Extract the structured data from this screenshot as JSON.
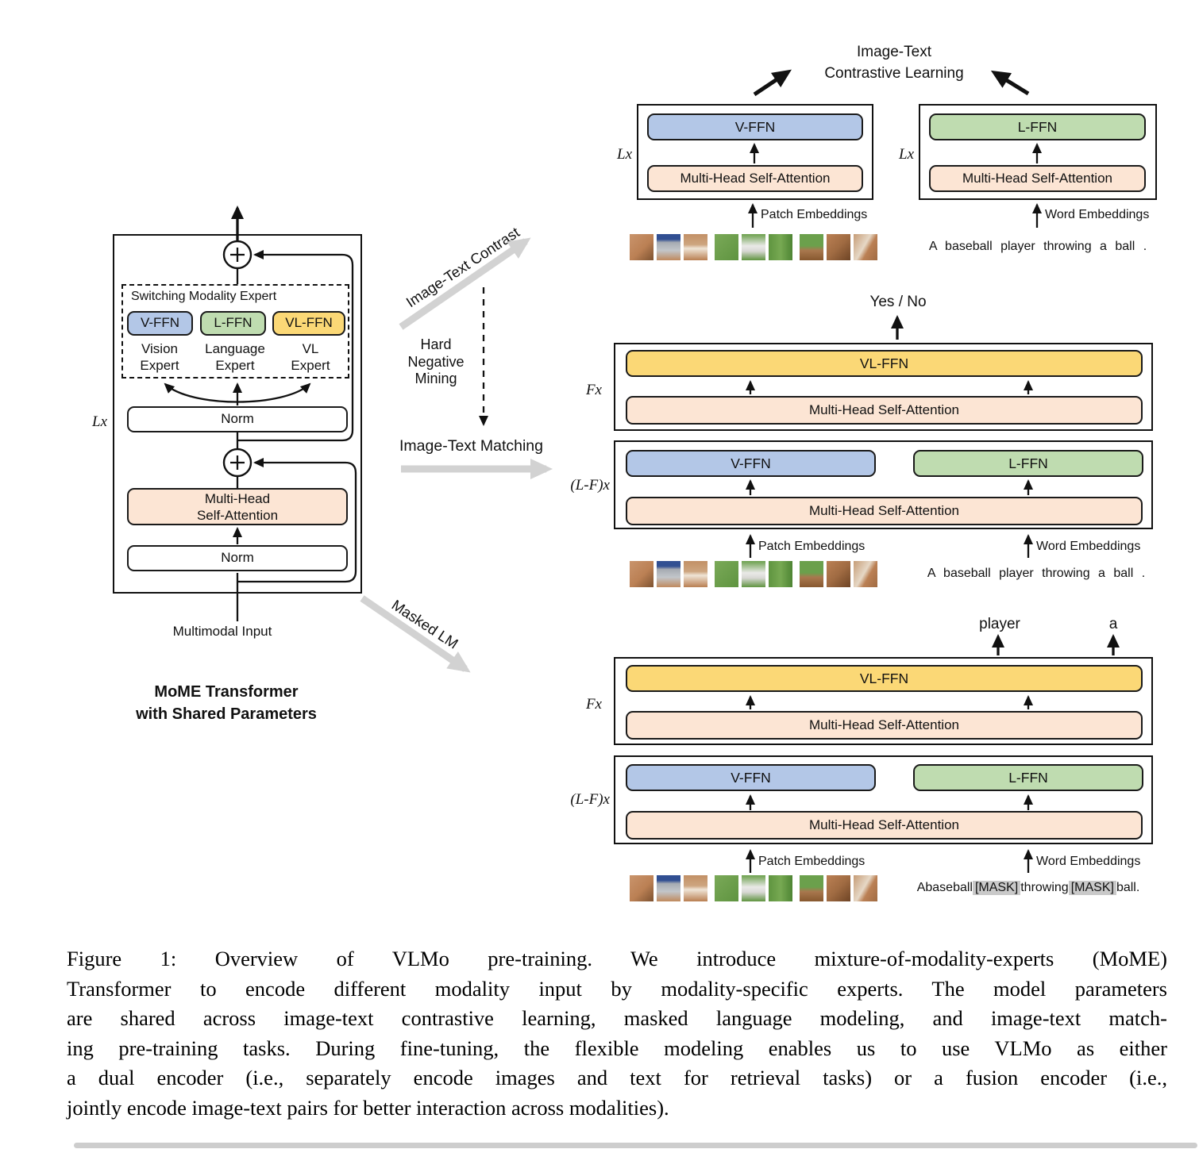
{
  "colors": {
    "vffn": "#b3c7e7",
    "lffn": "#bfdcb0",
    "vlffn": "#fbd876",
    "mhsa": "#fce5d4",
    "mask_bg": "#c9c9c9",
    "gray_arrow": "#d2d2d2"
  },
  "patches": {
    "gradients": [
      "linear-gradient(135deg,#c9946c 0%,#bb8054 55%,#7d5230 100%)",
      "linear-gradient(180deg,#314f92 0%,#314f92 20%,#a6abb2 32%,#c2c6ca 62%,#c08a5e 100%)",
      "linear-gradient(180deg,#c29066 0%,#cda57f 40%,#efe4d6 55%,#b97f52 100%)",
      "linear-gradient(135deg,#7aa958 0%,#5f9440 100%)",
      "linear-gradient(180deg,#6ba04c 0%,#e9e9e7 45%,#d8d8d4 65%,#5f9440 100%)",
      "linear-gradient(90deg,#5f9440 0%,#77a952 50%,#4e8534 100%)",
      "linear-gradient(180deg,#6ba04c 0%,#6ba04c 45%,#a9784e 62%,#87582f 100%)",
      "linear-gradient(135deg,#bb8054 0%,#a06b42 50%,#6e4425 100%)",
      "linear-gradient(120deg,#c69c76 0%,#e6d8c6 45%,#bb8054 62%,#a06b42 100%)"
    ]
  },
  "mome": {
    "lx": "Lx",
    "switching_title": "Switching Modality Expert",
    "experts": [
      {
        "label": "V-FFN",
        "sublabel": "Vision\nExpert"
      },
      {
        "label": "L-FFN",
        "sublabel": "Language\nExpert"
      },
      {
        "label": "VL-FFN",
        "sublabel": "VL\nExpert"
      }
    ],
    "norm_top": "Norm",
    "mhsa": "Multi-Head\nSelf-Attention",
    "norm_bottom": "Norm",
    "input_label": "Multimodal Input",
    "caption": "MoME Transformer\nwith Shared Parameters"
  },
  "flow": {
    "contrast_label": "Image-Text Contrast",
    "hard_negative": "Hard\nNegative\nMining",
    "matching_label": "Image-Text Matching",
    "masked_lm": "Masked LM"
  },
  "itc": {
    "title": "Image-Text\nContrastive Learning",
    "lx_left": "Lx",
    "lx_right": "Lx",
    "vffn": "V-FFN",
    "lffn": "L-FFN",
    "mhsa_left": "Multi-Head Self-Attention",
    "mhsa_right": "Multi-Head Self-Attention",
    "patch_embeddings": "Patch Embeddings",
    "word_embeddings": "Word Embeddings",
    "sentence": "A baseball player throwing a ball ."
  },
  "itm": {
    "output": "Yes / No",
    "fx": "Fx",
    "lfx": "(L-F)x",
    "vlffn": "VL-FFN",
    "vffn": "V-FFN",
    "lffn": "L-FFN",
    "mhsa_top": "Multi-Head Self-Attention",
    "mhsa_bottom": "Multi-Head Self-Attention",
    "patch_embeddings": "Patch Embeddings",
    "word_embeddings": "Word Embeddings",
    "sentence": "A baseball player throwing a ball ."
  },
  "mlm": {
    "output_word_1": "player",
    "output_word_2": "a",
    "fx": "Fx",
    "lfx": "(L-F)x",
    "vlffn": "VL-FFN",
    "vffn": "V-FFN",
    "lffn": "L-FFN",
    "mhsa_top": "Multi-Head Self-Attention",
    "mhsa_bottom": "Multi-Head Self-Attention",
    "patch_embeddings": "Patch Embeddings",
    "word_embeddings": "Word Embeddings",
    "tokens": [
      {
        "text": "A"
      },
      {
        "text": "baseball"
      },
      {
        "text": "[MASK]"
      },
      {
        "text": "throwing"
      },
      {
        "text": "[MASK]"
      },
      {
        "text": "ball"
      },
      {
        "text": "."
      }
    ]
  },
  "caption": {
    "lines": [
      "Figure 1: Overview of VLMo pre-training. We introduce mixture-of-modality-experts (MoME)",
      "Transformer to encode different modality input by modality-specific experts. The model parameters",
      "are shared across image-text contrastive learning, masked language modeling, and image-text match-",
      "ing pre-training tasks. During fine-tuning, the flexible modeling enables us to use VLMo as either",
      "a dual encoder (i.e., separately encode images and text for retrieval tasks) or a fusion encoder (i.e.,",
      "jointly encode image-text pairs for better interaction across modalities)."
    ]
  }
}
